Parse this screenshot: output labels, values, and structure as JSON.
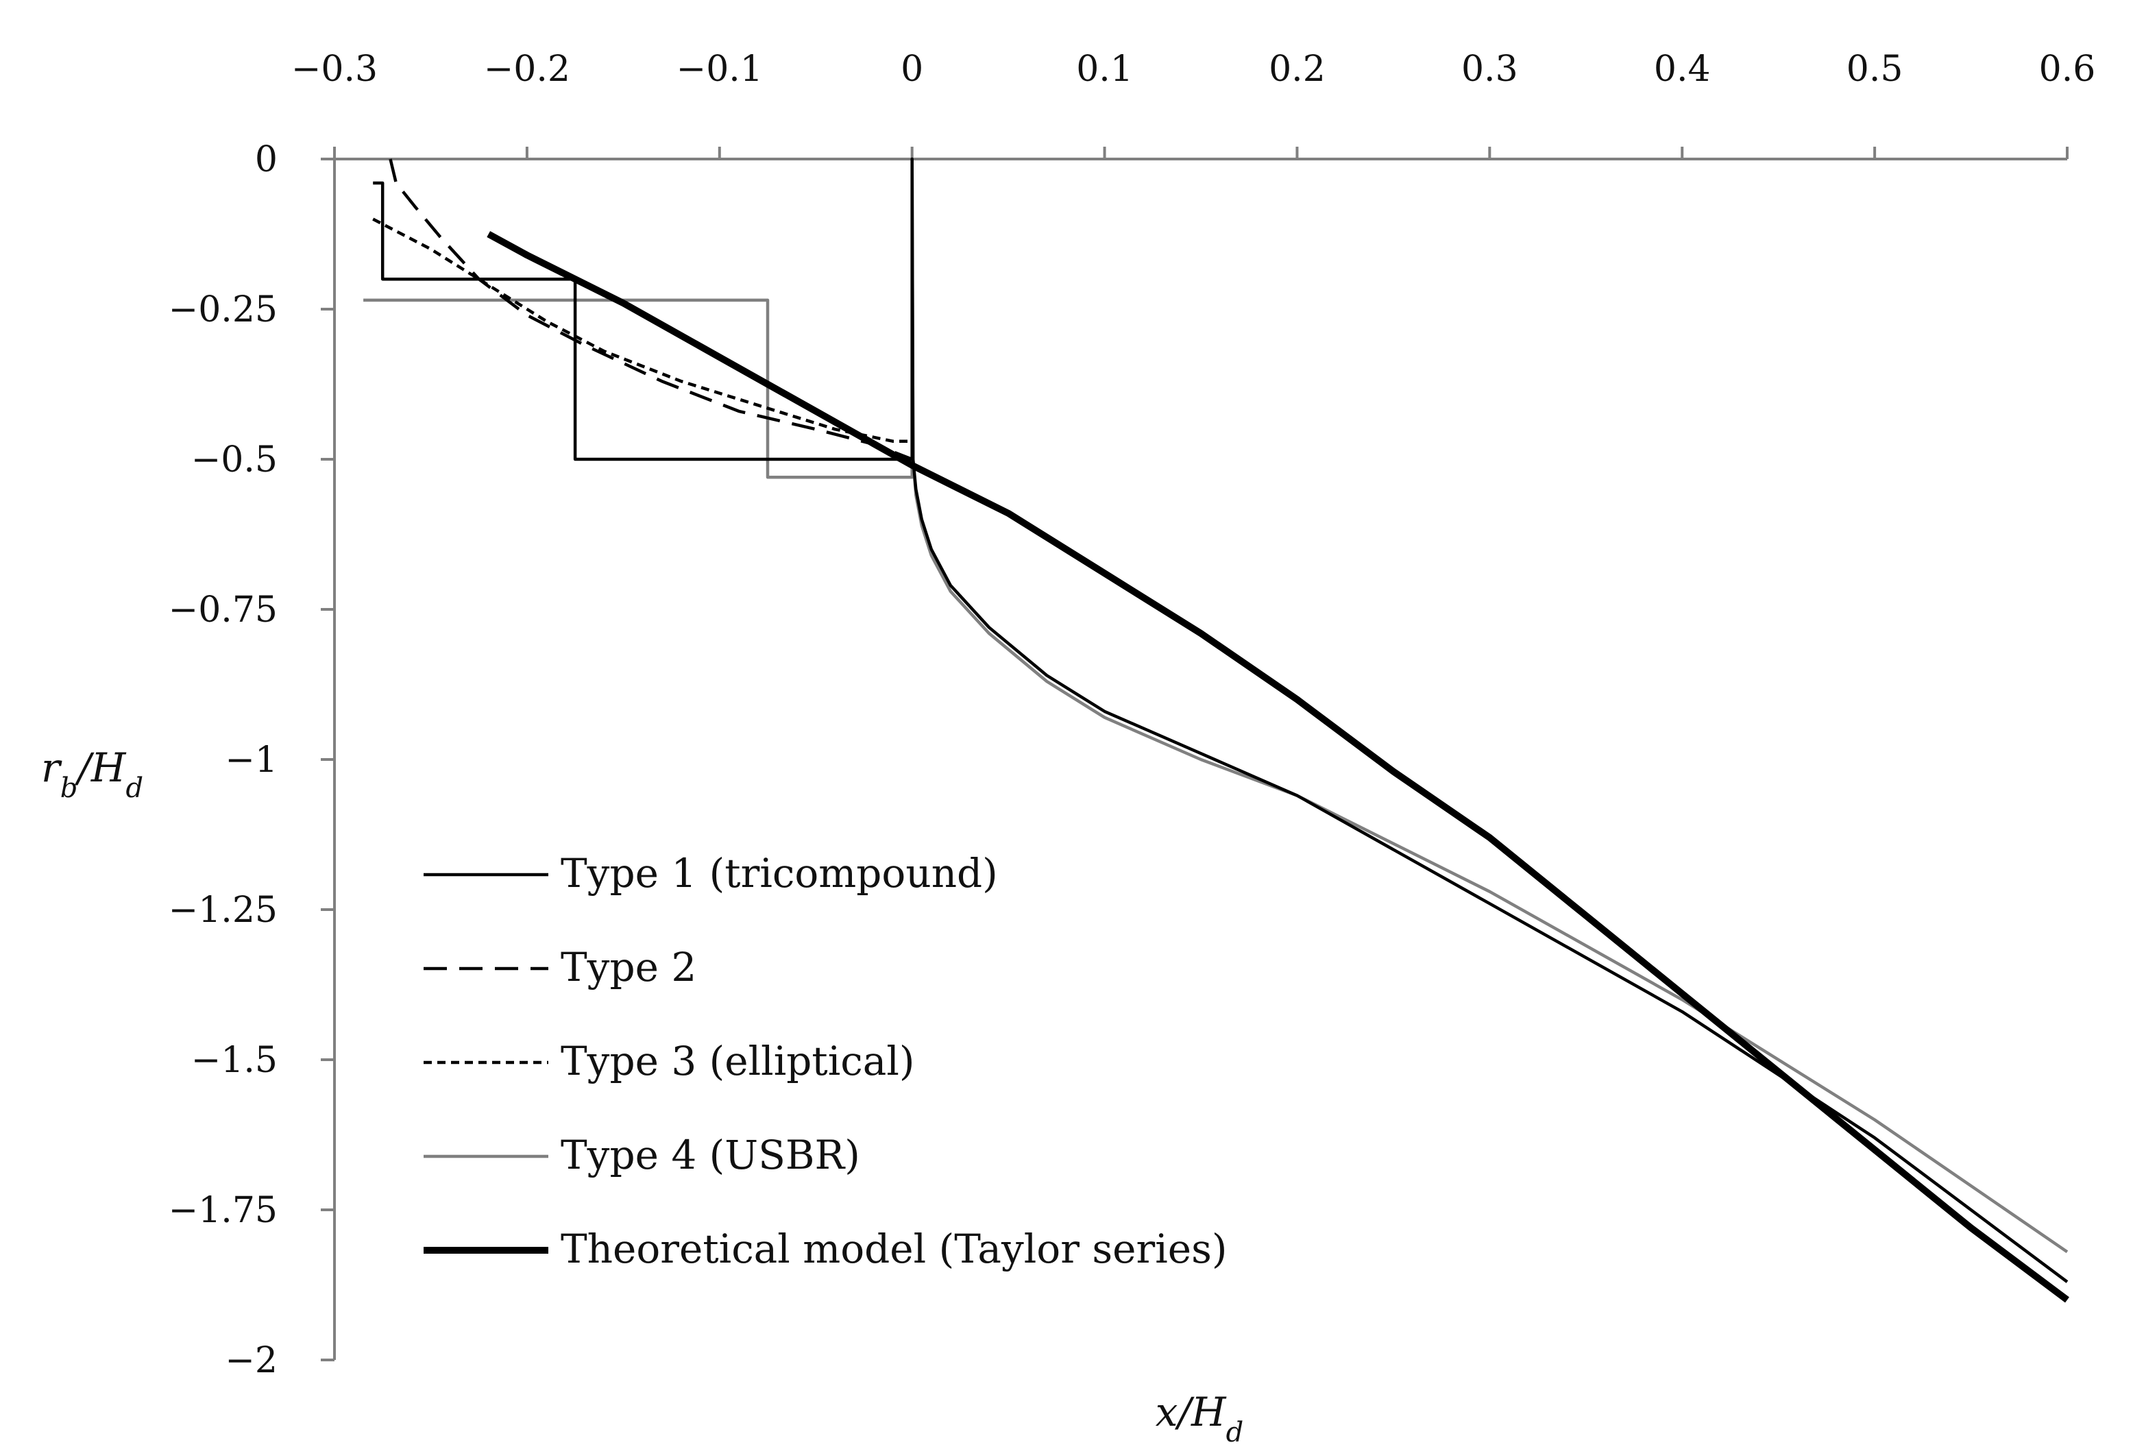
{
  "chart_data": {
    "type": "line",
    "title": "",
    "xlabel": "x/H_d",
    "ylabel": "r_b/H_d",
    "xlim": [
      -0.3,
      0.6
    ],
    "ylim": [
      -2,
      0
    ],
    "x_ticks": [
      -0.3,
      -0.2,
      -0.1,
      0,
      0.1,
      0.2,
      0.3,
      0.4,
      0.5,
      0.6
    ],
    "x_tick_labels": [
      "−0.3",
      "−0.2",
      "−0.1",
      "0",
      "0.1",
      "0.2",
      "0.3",
      "0.4",
      "0.5",
      "0.6"
    ],
    "y_ticks": [
      0,
      -0.25,
      -0.5,
      -0.75,
      -1,
      -1.25,
      -1.5,
      -1.75,
      -2
    ],
    "y_tick_labels": [
      "0",
      "−0.25",
      "−0.5",
      "−0.75",
      "−1",
      "−1.25",
      "−1.5",
      "−1.75",
      "−2"
    ],
    "x_axis_position": "top",
    "grid": false,
    "legend_position": "lower-left",
    "series": [
      {
        "name": "Type 1 (tricompound)",
        "color": "#000000",
        "style": "solid-thin",
        "points": [
          [
            -0.28,
            -0.04
          ],
          [
            -0.275,
            -0.04
          ],
          [
            -0.275,
            -0.2
          ],
          [
            -0.175,
            -0.2
          ],
          [
            -0.175,
            -0.5
          ],
          [
            0,
            -0.5
          ],
          [
            0,
            -0.0
          ],
          [
            0.0005,
            -0.5
          ],
          [
            0.002,
            -0.55
          ],
          [
            0.005,
            -0.6
          ],
          [
            0.01,
            -0.65
          ],
          [
            0.02,
            -0.71
          ],
          [
            0.04,
            -0.78
          ],
          [
            0.07,
            -0.86
          ],
          [
            0.1,
            -0.92
          ],
          [
            0.15,
            -0.99
          ],
          [
            0.2,
            -1.06
          ],
          [
            0.3,
            -1.24
          ],
          [
            0.4,
            -1.42
          ],
          [
            0.5,
            -1.63
          ],
          [
            0.6,
            -1.87
          ]
        ]
      },
      {
        "name": "Type 2",
        "color": "#000000",
        "style": "dashed-long",
        "points": [
          [
            -0.271,
            0.0
          ],
          [
            -0.268,
            -0.04
          ],
          [
            -0.258,
            -0.08
          ],
          [
            -0.245,
            -0.13
          ],
          [
            -0.225,
            -0.2
          ],
          [
            -0.2,
            -0.26
          ],
          [
            -0.17,
            -0.31
          ],
          [
            -0.13,
            -0.37
          ],
          [
            -0.09,
            -0.42
          ],
          [
            -0.05,
            -0.45
          ],
          [
            -0.02,
            -0.475
          ],
          [
            0,
            -0.5
          ]
        ]
      },
      {
        "name": "Type 3 (elliptical)",
        "color": "#000000",
        "style": "dashed-short",
        "points": [
          [
            -0.28,
            -0.1
          ],
          [
            -0.25,
            -0.15
          ],
          [
            -0.22,
            -0.21
          ],
          [
            -0.19,
            -0.27
          ],
          [
            -0.16,
            -0.32
          ],
          [
            -0.12,
            -0.37
          ],
          [
            -0.08,
            -0.41
          ],
          [
            -0.04,
            -0.45
          ],
          [
            -0.01,
            -0.47
          ],
          [
            0,
            -0.47
          ]
        ]
      },
      {
        "name": "Type 4 (USBR)",
        "color": "#808080",
        "style": "solid-thin",
        "points": [
          [
            -0.285,
            -0.235
          ],
          [
            -0.075,
            -0.235
          ],
          [
            -0.075,
            -0.53
          ],
          [
            0,
            -0.53
          ],
          [
            0,
            0.0
          ],
          [
            0.0005,
            -0.5
          ],
          [
            0.002,
            -0.56
          ],
          [
            0.005,
            -0.61
          ],
          [
            0.01,
            -0.66
          ],
          [
            0.02,
            -0.72
          ],
          [
            0.04,
            -0.79
          ],
          [
            0.07,
            -0.87
          ],
          [
            0.1,
            -0.93
          ],
          [
            0.15,
            -1.0
          ],
          [
            0.2,
            -1.06
          ],
          [
            0.3,
            -1.22
          ],
          [
            0.4,
            -1.4
          ],
          [
            0.5,
            -1.6
          ],
          [
            0.6,
            -1.82
          ]
        ]
      },
      {
        "name": "Theoretical model (Taylor series)",
        "color": "#000000",
        "style": "solid-thick",
        "points": [
          [
            -0.22,
            -0.125
          ],
          [
            -0.2,
            -0.16
          ],
          [
            -0.15,
            -0.24
          ],
          [
            -0.1,
            -0.33
          ],
          [
            -0.05,
            -0.42
          ],
          [
            0,
            -0.51
          ],
          [
            0.05,
            -0.59
          ],
          [
            0.1,
            -0.69
          ],
          [
            0.15,
            -0.79
          ],
          [
            0.2,
            -0.9
          ],
          [
            0.25,
            -1.02
          ],
          [
            0.3,
            -1.13
          ],
          [
            0.35,
            -1.26
          ],
          [
            0.4,
            -1.39
          ],
          [
            0.45,
            -1.52
          ],
          [
            0.5,
            -1.65
          ],
          [
            0.55,
            -1.78
          ],
          [
            0.6,
            -1.9
          ]
        ]
      }
    ]
  }
}
